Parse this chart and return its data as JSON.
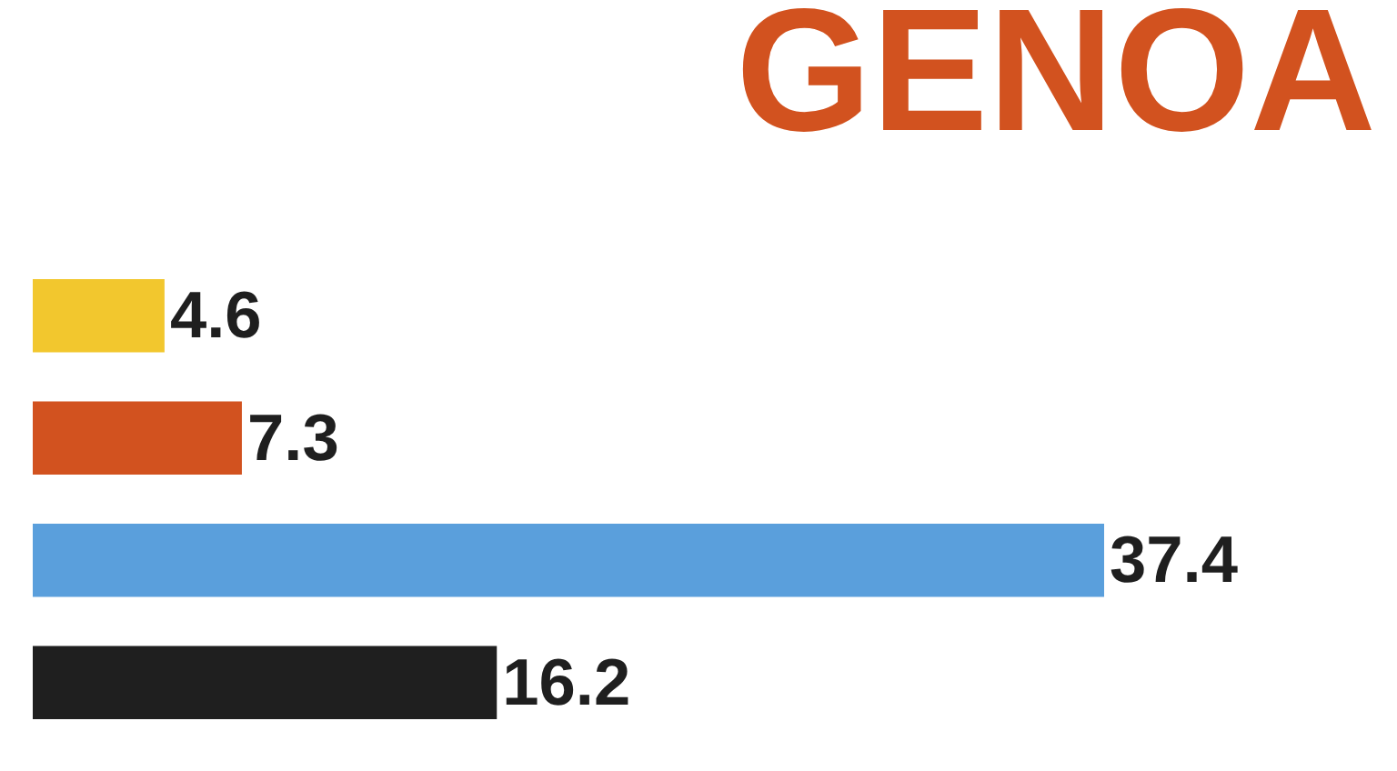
{
  "chart_data": {
    "type": "bar",
    "orientation": "horizontal",
    "title": "GENOA",
    "categories": [
      null,
      null,
      null,
      null
    ],
    "values": [
      4.6,
      7.3,
      37.4,
      16.2
    ],
    "colors": [
      "#f2c72e",
      "#d2521f",
      "#5a9fdc",
      "#1f1f1f"
    ],
    "data_labels": true,
    "tick_labels": false
  }
}
